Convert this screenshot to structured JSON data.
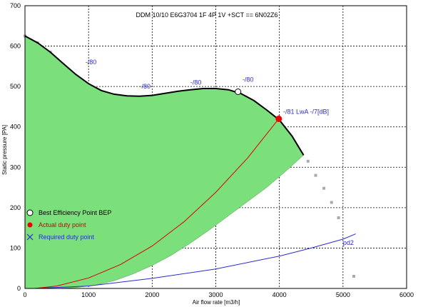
{
  "chart_data": {
    "type": "line",
    "title": "DDM 10/10 E6G3704 1F 4P 1V +SCT == 6N02Z6",
    "xlabel": "Air flow rate [m3/h]",
    "ylabel": "Static pressure [PA]",
    "xlim": [
      0,
      6000
    ],
    "ylim": [
      0,
      700
    ],
    "x_ticks": [
      "0",
      "1000",
      "2000",
      "3000",
      "4000",
      "5000",
      "6000"
    ],
    "y_ticks": [
      "0",
      "100",
      "200",
      "300",
      "400",
      "500",
      "600",
      "700"
    ],
    "grid": true,
    "legend_position": "bottom-left",
    "fan_curve": {
      "x": [
        0,
        200,
        400,
        600,
        800,
        1000,
        1200,
        1400,
        1600,
        1800,
        2000,
        2200,
        2400,
        2600,
        2800,
        3000,
        3200,
        3400,
        3600,
        3800,
        4000,
        4200,
        4380
      ],
      "y": [
        625,
        608,
        585,
        557,
        530,
        507,
        490,
        481,
        477,
        476,
        478,
        483,
        488,
        492,
        495,
        495,
        492,
        482,
        465,
        442,
        417,
        377,
        330
      ]
    },
    "operating_area_lower": {
      "x": [
        4380,
        4100,
        3800,
        3500,
        3200,
        2900,
        2600,
        2300,
        2000,
        1700,
        1400,
        1100,
        800,
        500,
        200,
        0
      ],
      "y": [
        330,
        290,
        250,
        215,
        180,
        145,
        112,
        82,
        57,
        36,
        19,
        8,
        2,
        0,
        0,
        0
      ]
    },
    "stall_points": {
      "x": [
        0,
        200,
        400,
        4450,
        4570,
        4700,
        4820,
        4930,
        5170
      ],
      "y": [
        625,
        608,
        585,
        315,
        280,
        248,
        213,
        175,
        30
      ]
    },
    "system_curve_actual": {
      "x": [
        150,
        500,
        1000,
        1500,
        2000,
        2500,
        3000,
        3500,
        3990
      ],
      "y": [
        0,
        6,
        26,
        59,
        105,
        165,
        238,
        323,
        420
      ]
    },
    "system_curve_required": {
      "x": [
        150,
        1000,
        2000,
        3000,
        4000,
        4500,
        5000,
        5200
      ],
      "y": [
        0,
        6,
        25,
        48,
        80,
        100,
        122,
        135
      ]
    },
    "bep": {
      "x": 3350,
      "y": 487
    },
    "duty_point": {
      "x": 3990,
      "y": 420
    },
    "legend": [
      {
        "label": "Best Efficiency Point BEP",
        "marker": "circle-white",
        "color": "#000000"
      },
      {
        "label": "Actual duty point",
        "marker": "dot-red",
        "color": "#cc0000"
      },
      {
        "label": "Required duty point",
        "marker": "x-blue",
        "color": "#2b2bd0"
      }
    ],
    "annotations": [
      {
        "text": "-/80",
        "x": 950,
        "y": 555,
        "color": "#2b2bd0"
      },
      {
        "text": "-/80",
        "x": 1800,
        "y": 495,
        "color": "#2b2bd0"
      },
      {
        "text": "-/80",
        "x": 2600,
        "y": 505,
        "color": "#2b2bd0"
      },
      {
        "text": "-/80",
        "x": 3420,
        "y": 512,
        "color": "#2b2bd0"
      },
      {
        "text": "-/81 LwA -/7[dB]",
        "x": 4060,
        "y": 432,
        "color": "#2b2bd0"
      },
      {
        "text": "pd2",
        "x": 5000,
        "y": 108,
        "color": "#000000"
      }
    ],
    "colors": {
      "area_fill": "#7be07b",
      "fan_curve": "#000000",
      "system_actual": "#dd0000",
      "system_required": "#2b2bd0",
      "duty_point": "#ee0000",
      "stall_points": "#aaaaaa"
    }
  }
}
